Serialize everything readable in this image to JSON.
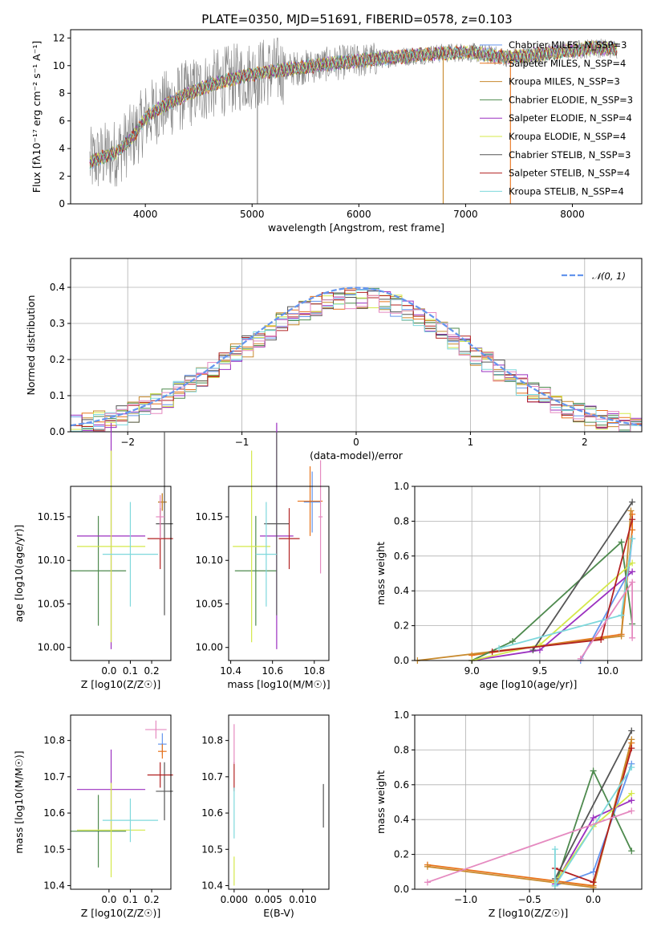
{
  "figure": {
    "title": "PLATE=0350, MJD=51691, FIBERID=0578, z=0.103"
  },
  "colors": {
    "Chabrier MILES": "#6495ED",
    "Salpeter MILES": "#E8731A",
    "Kroupa MILES": "#C88A2E",
    "Chabrier ELODIE": "#4E8A4E",
    "Salpeter ELODIE": "#9B30C0",
    "Kroupa ELODIE": "#D4E84A",
    "Chabrier STELIB": "#555555",
    "Salpeter STELIB": "#B22222",
    "Kroupa STELIB": "#7ED8DC",
    "pink": "#E58AC0",
    "gray": "#808080"
  },
  "chart_data": [
    {
      "id": "spectrum",
      "type": "line",
      "title": "PLATE=0350, MJD=51691, FIBERID=0578, z=0.103",
      "xlabel": "wavelength [Angstrom, rest frame]",
      "ylabel": "Flux [fλ10⁻¹⁷ erg cm⁻² s⁻¹ A⁻¹]",
      "xlim": [
        3300,
        8650
      ],
      "ylim": [
        0,
        12.6
      ],
      "xticks": [
        4000,
        5000,
        6000,
        7000,
        8000
      ],
      "yticks": [
        0,
        2,
        4,
        6,
        8,
        10,
        12
      ],
      "grid": false,
      "legend_position": "right",
      "legend": [
        "Chabrier MILES, N_SSP=3",
        "Salpeter MILES, N_SSP=4",
        "Kroupa MILES, N_SSP=3",
        "Chabrier ELODIE, N_SSP=3",
        "Salpeter ELODIE, N_SSP=4",
        "Kroupa ELODIE, N_SSP=4",
        "Chabrier STELIB, N_SSP=3",
        "Salpeter STELIB, N_SSP=4",
        "Kroupa STELIB, N_SSP=4"
      ],
      "continuum": {
        "x": [
          3480,
          3600,
          3700,
          3800,
          3900,
          4000,
          4100,
          4200,
          4300,
          4500,
          4700,
          4900,
          5100,
          5300,
          5500,
          5800,
          6200,
          6600,
          7000,
          7400,
          7800,
          8200,
          8400
        ],
        "y": [
          3.0,
          3.4,
          3.6,
          4.2,
          5.0,
          6.2,
          6.8,
          7.2,
          7.6,
          8.3,
          8.8,
          9.2,
          9.5,
          9.7,
          9.9,
          10.2,
          10.5,
          10.8,
          11.0,
          10.6,
          10.9,
          11.3,
          11.2
        ]
      },
      "spikes": [
        {
          "x": 5050,
          "y": 0
        },
        {
          "x": 6790,
          "y": 0
        },
        {
          "x": 7420,
          "y": 0
        }
      ]
    },
    {
      "id": "residual_hist",
      "type": "histogram",
      "xlabel": "(data-model)/error",
      "ylabel": "Normed distribution",
      "xlim": [
        -2.5,
        2.5
      ],
      "ylim": [
        0,
        0.48
      ],
      "xticks": [
        -2,
        -1,
        0,
        1,
        2
      ],
      "yticks": [
        0.0,
        0.1,
        0.2,
        0.3,
        0.4
      ],
      "grid": true,
      "legend": [
        "𝒩(0, 1)"
      ],
      "legend_position": "top-right",
      "reference_curve": {
        "name": "𝒩(0, 1)",
        "mean": 0,
        "sigma": 1
      },
      "bin_width": 0.1
    },
    {
      "id": "age_vs_Z",
      "type": "errorbar",
      "xlabel": "Z [log10(Z/Z☉)]",
      "ylabel": "age [log10(age/yr)]",
      "xlim": [
        -0.18,
        0.29
      ],
      "ylim": [
        9.985,
        10.185
      ],
      "xticks": [
        0.0,
        0.1,
        0.2
      ],
      "yticks": [
        10.0,
        10.05,
        10.1,
        10.15
      ],
      "grid": false,
      "points": [
        {
          "series": "Chabrier MILES",
          "x": 0.25,
          "y": 10.167,
          "xerr": 0.02,
          "yerr": 0.01
        },
        {
          "series": "Salpeter MILES",
          "x": 0.25,
          "y": 10.167,
          "xerr": 0.02,
          "yerr": 0.01
        },
        {
          "series": "Kroupa MILES",
          "x": 0.25,
          "y": 10.167,
          "xerr": 0.02,
          "yerr": 0.01
        },
        {
          "series": "Chabrier ELODIE",
          "x": -0.05,
          "y": 10.088,
          "xerr": 0.13,
          "yerr": 0.063
        },
        {
          "series": "Salpeter ELODIE",
          "x": 0.01,
          "y": 10.128,
          "xerr": 0.16,
          "yerr": 0.13
        },
        {
          "series": "Kroupa ELODIE",
          "x": 0.01,
          "y": 10.116,
          "xerr": 0.16,
          "yerr": 0.11
        },
        {
          "series": "Chabrier STELIB",
          "x": 0.26,
          "y": 10.142,
          "xerr": 0.04,
          "yerr": 0.105
        },
        {
          "series": "Salpeter STELIB",
          "x": 0.24,
          "y": 10.125,
          "xerr": 0.06,
          "yerr": 0.035
        },
        {
          "series": "Kroupa STELIB",
          "x": 0.1,
          "y": 10.107,
          "xerr": 0.13,
          "yerr": 0.06
        },
        {
          "series": "pink",
          "x": 0.24,
          "y": 10.15,
          "xerr": 0.02,
          "yerr": 0.025
        }
      ]
    },
    {
      "id": "age_vs_mass",
      "type": "errorbar",
      "xlabel": "mass [log10(M/M☉)]",
      "ylabel": "",
      "xlim": [
        10.39,
        10.87
      ],
      "ylim": [
        9.985,
        10.185
      ],
      "xticks": [
        10.4,
        10.6,
        10.8
      ],
      "yticks": [
        10.0,
        10.05,
        10.1,
        10.15
      ],
      "grid": false,
      "points": [
        {
          "series": "Chabrier MILES",
          "x": 10.79,
          "y": 10.167,
          "xerr": 0.04,
          "yerr": 0.035
        },
        {
          "series": "Salpeter MILES",
          "x": 10.78,
          "y": 10.168,
          "xerr": 0.06,
          "yerr": 0.04
        },
        {
          "series": "Chabrier ELODIE",
          "x": 10.52,
          "y": 10.088,
          "xerr": 0.1,
          "yerr": 0.063
        },
        {
          "series": "Salpeter ELODIE",
          "x": 10.62,
          "y": 10.128,
          "xerr": 0.08,
          "yerr": 0.13
        },
        {
          "series": "Kroupa ELODIE",
          "x": 10.5,
          "y": 10.116,
          "xerr": 0.09,
          "yerr": 0.11
        },
        {
          "series": "Chabrier STELIB",
          "x": 10.62,
          "y": 10.142,
          "xerr": 0.06,
          "yerr": 0.105
        },
        {
          "series": "Salpeter STELIB",
          "x": 10.68,
          "y": 10.125,
          "xerr": 0.05,
          "yerr": 0.035
        },
        {
          "series": "Kroupa STELIB",
          "x": 10.57,
          "y": 10.107,
          "xerr": 0.05,
          "yerr": 0.06
        },
        {
          "series": "pink",
          "x": 10.83,
          "y": 10.15,
          "xerr": 0.01,
          "yerr": 0.065
        }
      ]
    },
    {
      "id": "massweight_vs_age",
      "type": "line",
      "xlabel": "age  [log10(age/yr)]",
      "ylabel": "mass weight",
      "xlim": [
        8.58,
        10.25
      ],
      "ylim": [
        0,
        1.0
      ],
      "xticks": [
        9.0,
        9.5,
        10.0
      ],
      "yticks": [
        0.0,
        0.2,
        0.4,
        0.6,
        0.8,
        1.0
      ],
      "grid": true,
      "series": [
        {
          "name": "Chabrier MILES",
          "x": [
            9.8,
            10.15,
            10.18
          ],
          "y": [
            0.0,
            0.5,
            0.7
          ]
        },
        {
          "name": "Salpeter MILES",
          "x": [
            9.0,
            10.1,
            10.18,
            10.18
          ],
          "y": [
            0.03,
            0.15,
            0.75,
            0.84
          ]
        },
        {
          "name": "Kroupa MILES",
          "x": [
            8.6,
            10.1,
            10.17
          ],
          "y": [
            0.0,
            0.14,
            0.86
          ]
        },
        {
          "name": "Chabrier ELODIE",
          "x": [
            9.0,
            9.3,
            10.1,
            10.18
          ],
          "y": [
            0.0,
            0.11,
            0.68,
            0.21
          ]
        },
        {
          "name": "Salpeter ELODIE",
          "x": [
            9.0,
            9.5,
            10.18
          ],
          "y": [
            0.0,
            0.06,
            0.51
          ]
        },
        {
          "name": "Kroupa ELODIE",
          "x": [
            9.0,
            9.5,
            10.18
          ],
          "y": [
            0.0,
            0.09,
            0.56
          ]
        },
        {
          "name": "Chabrier STELIB",
          "x": [
            9.45,
            10.18
          ],
          "y": [
            0.06,
            0.91
          ]
        },
        {
          "name": "Salpeter STELIB",
          "x": [
            9.15,
            9.95,
            10.18
          ],
          "y": [
            0.05,
            0.12,
            0.81
          ]
        },
        {
          "name": "Kroupa STELIB",
          "x": [
            9.2,
            10.1,
            10.18
          ],
          "y": [
            0.07,
            0.26,
            0.7
          ]
        },
        {
          "name": "pink",
          "x": [
            9.8,
            10.18,
            10.18
          ],
          "y": [
            0.01,
            0.45,
            0.13
          ]
        }
      ]
    },
    {
      "id": "mass_vs_Z",
      "type": "errorbar",
      "xlabel": "Z [log10(Z/Z☉)]",
      "ylabel": "mass [log10(M/M☉)]",
      "xlim": [
        -0.18,
        0.29
      ],
      "ylim": [
        10.39,
        10.87
      ],
      "xticks": [
        0.0,
        0.1,
        0.2
      ],
      "yticks": [
        10.4,
        10.5,
        10.6,
        10.7,
        10.8
      ],
      "grid": false,
      "points": [
        {
          "series": "Chabrier MILES",
          "x": 0.25,
          "y": 10.79,
          "xerr": 0.02,
          "yerr": 0.03
        },
        {
          "series": "Salpeter MILES",
          "x": 0.25,
          "y": 10.77,
          "xerr": 0.02,
          "yerr": 0.02
        },
        {
          "series": "Chabrier ELODIE",
          "x": -0.05,
          "y": 10.55,
          "xerr": 0.13,
          "yerr": 0.1
        },
        {
          "series": "Salpeter ELODIE",
          "x": 0.01,
          "y": 10.665,
          "xerr": 0.16,
          "yerr": 0.11
        },
        {
          "series": "Kroupa ELODIE",
          "x": 0.01,
          "y": 10.553,
          "xerr": 0.16,
          "yerr": 0.13
        },
        {
          "series": "Chabrier STELIB",
          "x": 0.26,
          "y": 10.66,
          "xerr": 0.04,
          "yerr": 0.08
        },
        {
          "series": "Salpeter STELIB",
          "x": 0.24,
          "y": 10.705,
          "xerr": 0.06,
          "yerr": 0.035
        },
        {
          "series": "Kroupa STELIB",
          "x": 0.1,
          "y": 10.58,
          "xerr": 0.13,
          "yerr": 0.06
        },
        {
          "series": "pink",
          "x": 0.22,
          "y": 10.83,
          "xerr": 0.05,
          "yerr": 0.025
        }
      ]
    },
    {
      "id": "mass_vs_EBV",
      "type": "errorbar",
      "xlabel": "E(B-V)",
      "ylabel": "",
      "xlim": [
        -0.0008,
        0.0138
      ],
      "ylim": [
        10.39,
        10.87
      ],
      "xticks": [
        0.0,
        0.005,
        0.01
      ],
      "xtick_labels": [
        "0.000",
        "0.005",
        "0.010"
      ],
      "yticks": [
        10.4,
        10.5,
        10.6,
        10.7,
        10.8
      ],
      "grid": false,
      "points": [
        {
          "series": "Salpeter STELIB",
          "x": 0.0,
          "y": 10.7,
          "xerr": 0,
          "yerr": 0.04
        },
        {
          "series": "pink",
          "x": 0.0,
          "y": 10.79,
          "xerr": 0,
          "yerr": 0.055
        },
        {
          "series": "Kroupa STELIB",
          "x": 0.0,
          "y": 10.6,
          "xerr": 0,
          "yerr": 0.07
        },
        {
          "series": "Kroupa ELODIE",
          "x": 0.0,
          "y": 10.44,
          "xerr": 0,
          "yerr": 0.04
        },
        {
          "series": "Chabrier STELIB",
          "x": 0.013,
          "y": 10.62,
          "xerr": 0,
          "yerr": 0.06
        }
      ]
    },
    {
      "id": "massweight_vs_Z",
      "type": "line",
      "xlabel": "Z [log10(Z/Z☉)]",
      "ylabel": "mass weight",
      "xlim": [
        -1.4,
        0.38
      ],
      "ylim": [
        0,
        1.0
      ],
      "xticks": [
        -1.0,
        -0.5,
        0.0
      ],
      "yticks": [
        0.0,
        0.2,
        0.4,
        0.6,
        0.8,
        1.0
      ],
      "grid": true,
      "series": [
        {
          "name": "Chabrier MILES",
          "x": [
            -0.3,
            0.0,
            0.3
          ],
          "y": [
            0.02,
            0.1,
            0.72
          ]
        },
        {
          "name": "Salpeter MILES",
          "x": [
            -1.3,
            0.0,
            0.3
          ],
          "y": [
            0.14,
            0.02,
            0.84
          ]
        },
        {
          "name": "Kroupa MILES",
          "x": [
            -1.3,
            0.0,
            0.3
          ],
          "y": [
            0.13,
            0.01,
            0.86
          ]
        },
        {
          "name": "Chabrier ELODIE",
          "x": [
            -0.3,
            0.0,
            0.3
          ],
          "y": [
            0.02,
            0.68,
            0.22
          ]
        },
        {
          "name": "Salpeter ELODIE",
          "x": [
            -0.3,
            0.0,
            0.3
          ],
          "y": [
            0.03,
            0.41,
            0.51
          ]
        },
        {
          "name": "Kroupa ELODIE",
          "x": [
            -0.3,
            0.0,
            0.3
          ],
          "y": [
            0.04,
            0.36,
            0.55
          ]
        },
        {
          "name": "Chabrier STELIB",
          "x": [
            -0.3,
            0.3
          ],
          "y": [
            0.06,
            0.91
          ]
        },
        {
          "name": "Salpeter STELIB",
          "x": [
            -0.3,
            0.0,
            0.3
          ],
          "y": [
            0.12,
            0.04,
            0.81
          ]
        },
        {
          "name": "Kroupa STELIB",
          "x": [
            -0.3,
            -0.3,
            0.3
          ],
          "y": [
            0.23,
            0.02,
            0.7
          ]
        },
        {
          "name": "pink",
          "x": [
            -1.3,
            0.3
          ],
          "y": [
            0.04,
            0.45
          ]
        }
      ]
    }
  ]
}
